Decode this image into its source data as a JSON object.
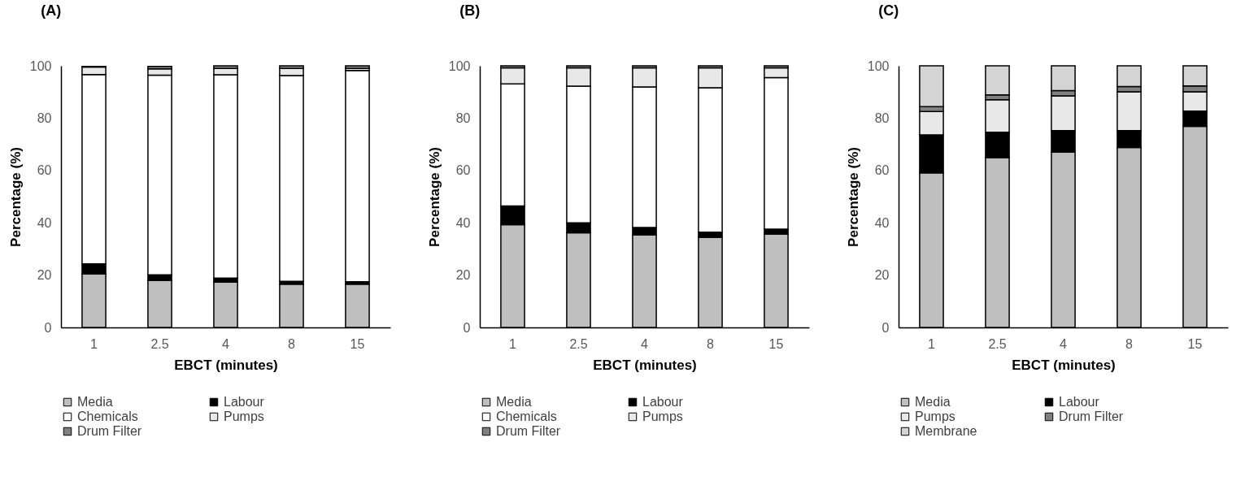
{
  "chart_data": [
    {
      "type": "bar",
      "title": "(A)",
      "xlabel": "EBCT (minutes)",
      "ylabel": "Percentage (%)",
      "categories": [
        "1",
        "2.5",
        "4",
        "8",
        "15"
      ],
      "stacked": true,
      "legend": "bottom",
      "grid": false,
      "ylim": [
        0,
        100
      ],
      "yticks": [
        0,
        20,
        40,
        60,
        80,
        100
      ],
      "series": [
        {
          "name": "Media",
          "color": "#bfbfbf",
          "values": [
            20.5,
            18,
            17.3,
            16.5,
            16.5
          ]
        },
        {
          "name": "Labour",
          "color": "#000000",
          "values": [
            3.8,
            2.1,
            1.6,
            1.1,
            1
          ]
        },
        {
          "name": "Chemicals",
          "color": "#ffffff",
          "values": [
            72.4,
            76.3,
            77.7,
            78.7,
            80.7
          ]
        },
        {
          "name": "Pumps",
          "color": "#e8e8e8",
          "values": [
            2.8,
            2.4,
            2.4,
            2.7,
            0.8
          ]
        },
        {
          "name": "Drum Filter",
          "color": "#808080",
          "values": [
            0.3,
            1,
            1,
            1,
            1
          ]
        }
      ]
    },
    {
      "type": "bar",
      "title": "(B)",
      "xlabel": "EBCT (minutes)",
      "ylabel": "Percentage (%)",
      "categories": [
        "1",
        "2.5",
        "4",
        "8",
        "15"
      ],
      "stacked": true,
      "legend": "bottom",
      "grid": false,
      "ylim": [
        0,
        100
      ],
      "yticks": [
        0,
        20,
        40,
        60,
        80,
        100
      ],
      "series": [
        {
          "name": "Media",
          "color": "#bfbfbf",
          "values": [
            39.3,
            36.2,
            35.4,
            34.5,
            35.7
          ]
        },
        {
          "name": "Labour",
          "color": "#000000",
          "values": [
            7.1,
            3.8,
            2.8,
            1.9,
            1.9
          ]
        },
        {
          "name": "Chemicals",
          "color": "#ffffff",
          "values": [
            46.7,
            52.2,
            53.7,
            55.2,
            57.9
          ]
        },
        {
          "name": "Pumps",
          "color": "#e8e8e8",
          "values": [
            6.1,
            7,
            7.3,
            7.6,
            3.7
          ]
        },
        {
          "name": "Drum Filter",
          "color": "#808080",
          "values": [
            0.8,
            0.8,
            0.8,
            0.8,
            0.8
          ]
        }
      ]
    },
    {
      "type": "bar",
      "title": "(C)",
      "xlabel": "EBCT (minutes)",
      "ylabel": "Percentage (%)",
      "categories": [
        "1",
        "2.5",
        "4",
        "8",
        "15"
      ],
      "stacked": true,
      "legend": "bottom",
      "grid": false,
      "ylim": [
        0,
        100
      ],
      "yticks": [
        0,
        20,
        40,
        60,
        80,
        100
      ],
      "series": [
        {
          "name": "Media",
          "color": "#bfbfbf",
          "values": [
            59.1,
            64.9,
            67,
            68.8,
            76.9
          ]
        },
        {
          "name": "Labour",
          "color": "#000000",
          "values": [
            14.5,
            9.7,
            8.2,
            6.4,
            5.8
          ]
        },
        {
          "name": "Pumps",
          "color": "#e8e8e8",
          "values": [
            8.9,
            12.4,
            13.3,
            14.9,
            7.4
          ]
        },
        {
          "name": "Drum Filter",
          "color": "#808080",
          "values": [
            1.9,
            1.9,
            2,
            2,
            2.2
          ]
        },
        {
          "name": "Membrane",
          "color": "#d4d4d4",
          "values": [
            15.6,
            11.1,
            9.5,
            7.9,
            7.7
          ]
        }
      ]
    }
  ]
}
